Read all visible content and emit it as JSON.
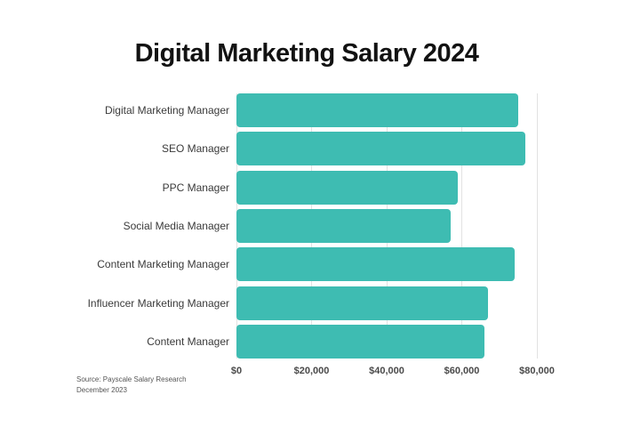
{
  "title": "Digital Marketing Salary 2024",
  "source": {
    "line1": "Source: Payscale Salary Research",
    "line2": "December 2023"
  },
  "chart_data": {
    "type": "bar",
    "orientation": "horizontal",
    "title": "Digital Marketing Salary 2024",
    "categories": [
      "Digital Marketing Manager",
      "SEO Manager",
      "PPC Manager",
      "Social Media Manager",
      "Content Marketing Manager",
      "Influencer Marketing Manager",
      "Content Manager"
    ],
    "values": [
      75000,
      77000,
      59000,
      57000,
      74000,
      67000,
      66000
    ],
    "xlabel": "",
    "ylabel": "",
    "xlim": [
      0,
      80000
    ],
    "x_tick_values": [
      0,
      20000,
      40000,
      60000,
      80000
    ],
    "x_tick_labels": [
      "$0",
      "$20,000",
      "$40,000",
      "$60,000",
      "$80,000"
    ],
    "grid": "vertical-ticks-behind-bars",
    "legend": "none",
    "bar_color": "#3EBCB2",
    "gridline_color": "#E2E2E2",
    "category_label_color": "#3A3A3A",
    "tick_label_color": "#4A4A4A",
    "title_color": "#121212",
    "background_color": "#FFFFFF"
  }
}
